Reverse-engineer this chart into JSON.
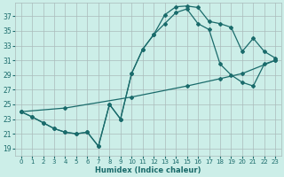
{
  "bg_color": "#cceee8",
  "grid_color": "#aabbbb",
  "line_color": "#1a6b6b",
  "xlabel": "Humidex (Indice chaleur)",
  "xlim": [
    -0.5,
    23.5
  ],
  "ylim": [
    18.0,
    38.8
  ],
  "xticks": [
    0,
    1,
    2,
    3,
    4,
    5,
    6,
    7,
    8,
    9,
    10,
    11,
    12,
    13,
    14,
    15,
    16,
    17,
    18,
    19,
    20,
    21,
    22,
    23
  ],
  "yticks": [
    19,
    21,
    23,
    25,
    27,
    29,
    31,
    33,
    35,
    37
  ],
  "curve1_x": [
    0,
    1,
    2,
    3,
    4,
    5,
    6,
    7,
    8,
    9,
    10,
    11,
    12,
    13,
    14,
    15,
    16,
    17,
    18,
    19,
    20,
    21,
    22,
    23
  ],
  "curve1_y": [
    24.0,
    23.3,
    22.5,
    21.7,
    21.2,
    21.0,
    21.2,
    19.3,
    25.0,
    23.0,
    29.2,
    32.5,
    34.5,
    37.2,
    38.3,
    38.4,
    38.2,
    36.3,
    36.0,
    35.5,
    32.2,
    34.0,
    32.2,
    31.3
  ],
  "curve2_x": [
    0,
    1,
    2,
    3,
    4,
    5,
    6,
    7,
    8,
    9,
    10,
    11,
    12,
    13,
    14,
    15,
    16,
    17,
    18,
    19,
    20,
    21,
    22,
    23
  ],
  "curve2_y": [
    24.0,
    23.3,
    22.5,
    21.7,
    21.2,
    21.0,
    21.2,
    19.3,
    25.0,
    23.0,
    29.2,
    32.5,
    34.5,
    36.0,
    37.5,
    38.0,
    36.0,
    35.2,
    30.5,
    29.0,
    28.0,
    27.5,
    30.5,
    31.0
  ],
  "line3_x": [
    0,
    4,
    10,
    15,
    18,
    20,
    23
  ],
  "line3_y": [
    24.0,
    24.5,
    26.0,
    27.5,
    28.5,
    29.2,
    31.0
  ]
}
